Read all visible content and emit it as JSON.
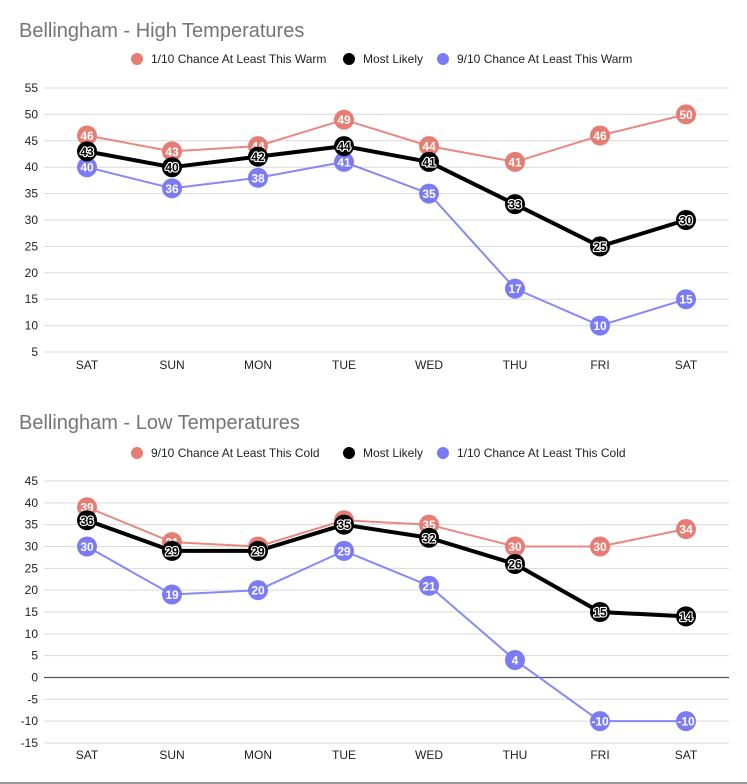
{
  "chart_data": [
    {
      "type": "line",
      "title": "Bellingham - High Temperatures",
      "categories": [
        "SAT",
        "SUN",
        "MON",
        "TUE",
        "WED",
        "THU",
        "FRI",
        "SAT"
      ],
      "ylim": [
        5,
        55
      ],
      "yticks": [
        5,
        10,
        15,
        20,
        25,
        30,
        35,
        40,
        45,
        50,
        55
      ],
      "grid": true,
      "legend_position": "top",
      "xlabel": "",
      "ylabel": "",
      "series": [
        {
          "name": "1/10 Chance At Least This Warm",
          "color": "#e67c73",
          "line_width": "thin",
          "values": [
            46,
            43,
            44,
            49,
            44,
            41,
            46,
            50
          ]
        },
        {
          "name": "Most Likely",
          "color": "#000000",
          "line_width": "thick",
          "values": [
            43,
            40,
            42,
            44,
            41,
            33,
            25,
            30
          ]
        },
        {
          "name": "9/10 Chance At Least This Warm",
          "color": "#7b7bf5",
          "line_width": "thin",
          "values": [
            40,
            36,
            38,
            41,
            35,
            17,
            10,
            15
          ]
        }
      ]
    },
    {
      "type": "line",
      "title": "Bellingham - Low Temperatures",
      "categories": [
        "SAT",
        "SUN",
        "MON",
        "TUE",
        "WED",
        "THU",
        "FRI",
        "SAT"
      ],
      "ylim": [
        -15,
        45
      ],
      "yticks": [
        -15,
        -10,
        -5,
        0,
        5,
        10,
        15,
        20,
        25,
        30,
        35,
        40,
        45
      ],
      "baseline": 0,
      "grid": true,
      "legend_position": "top",
      "xlabel": "",
      "ylabel": "",
      "series": [
        {
          "name": "9/10 Chance At Least This Cold",
          "color": "#e67c73",
          "line_width": "thin",
          "values": [
            39,
            31,
            30,
            36,
            35,
            30,
            30,
            34
          ]
        },
        {
          "name": "Most Likely",
          "color": "#000000",
          "line_width": "thick",
          "values": [
            36,
            29,
            29,
            35,
            32,
            26,
            15,
            14
          ]
        },
        {
          "name": "1/10 Chance At Least This Cold",
          "color": "#7b7bf5",
          "line_width": "thin",
          "values": [
            30,
            19,
            20,
            29,
            21,
            4,
            -10,
            -10
          ]
        }
      ]
    }
  ]
}
